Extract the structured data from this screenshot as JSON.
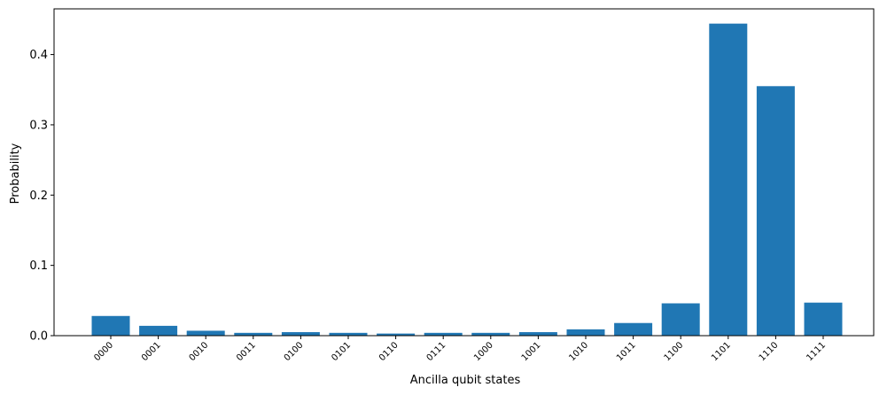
{
  "chart_data": {
    "type": "bar",
    "title": "",
    "xlabel": "Ancilla qubit states",
    "ylabel": "Probability",
    "categories": [
      "0000",
      "0001",
      "0010",
      "0011",
      "0100",
      "0101",
      "0110",
      "0111",
      "1000",
      "1001",
      "1010",
      "1011",
      "1100",
      "1101",
      "1110",
      "1111"
    ],
    "values": [
      0.028,
      0.014,
      0.007,
      0.004,
      0.005,
      0.004,
      0.003,
      0.004,
      0.004,
      0.005,
      0.009,
      0.018,
      0.046,
      0.444,
      0.355,
      0.047
    ],
    "ylim": [
      0,
      0.465
    ],
    "yticks": [
      0.0,
      0.1,
      0.2,
      0.3,
      0.4
    ],
    "ytick_labels": [
      "0.0",
      "0.1",
      "0.2",
      "0.3",
      "0.4"
    ],
    "grid": false,
    "bar_color": "#2077b4"
  }
}
